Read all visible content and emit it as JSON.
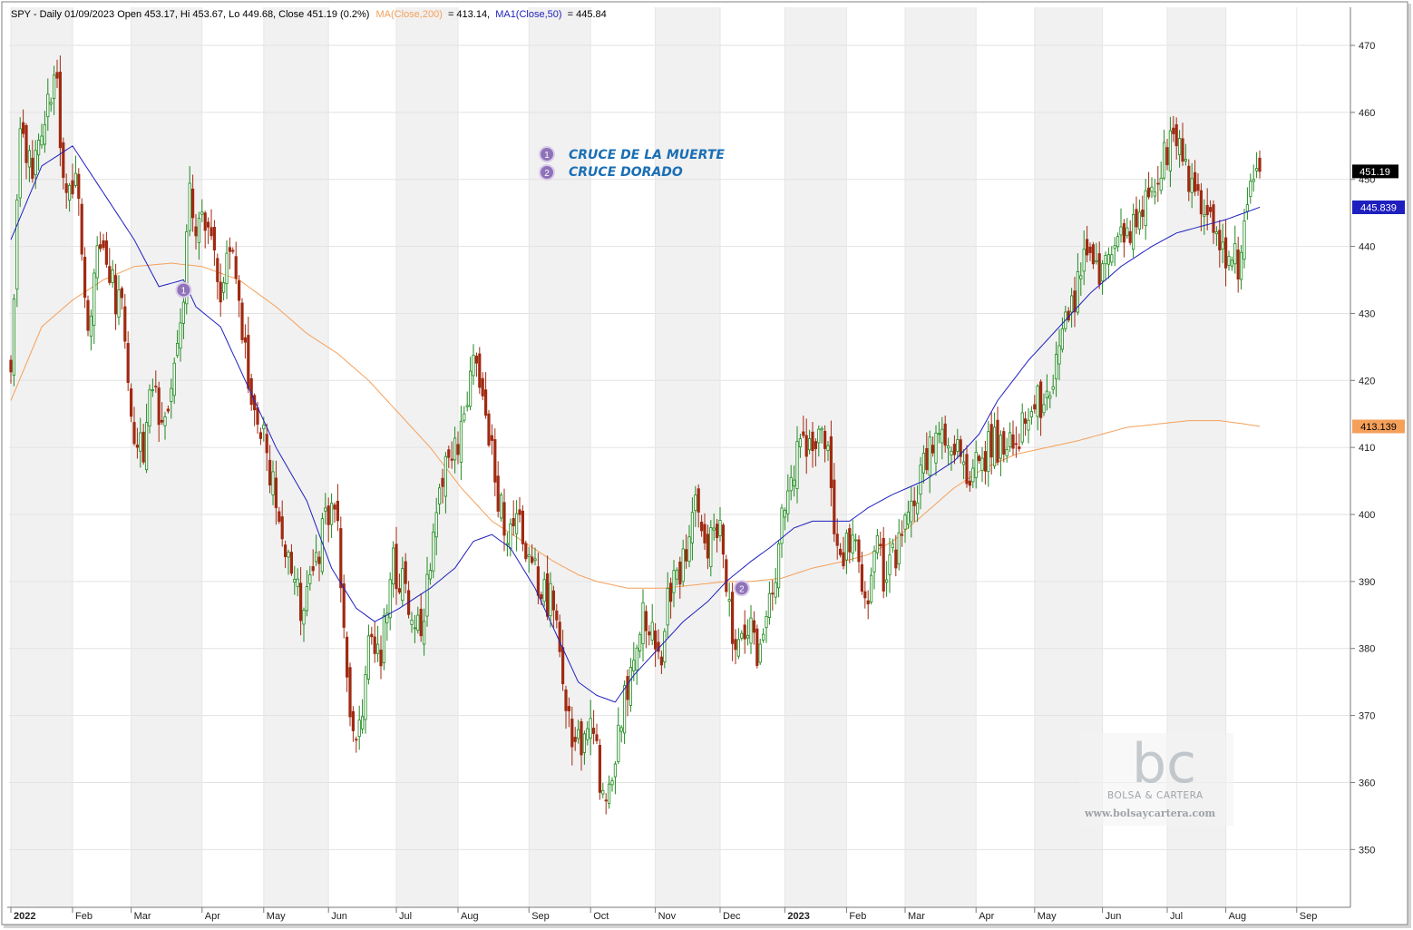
{
  "header": {
    "symbol_text": "SPY - Daily 01/09/2023 Open 453.17, Hi 453.67, Lo 449.68, Close 451.19 (0.2%)",
    "ma200_text": "MA(Close,200)",
    "ma200_value_text": "= 413.14,",
    "ma50_text": "MA1(Close,50)",
    "ma50_value_text": "= 445.84"
  },
  "annotations": [
    {
      "num": "1",
      "label": "CRUCE DE LA MUERTE"
    },
    {
      "num": "2",
      "label": "CRUCE DORADO"
    }
  ],
  "markers": [
    {
      "num": "1",
      "t": 56,
      "price": 433.5
    },
    {
      "num": "2",
      "t": 237,
      "price": 389.0
    }
  ],
  "price_tags": {
    "close": "451.19",
    "ma50": "445.839",
    "ma200": "413.139"
  },
  "watermark": {
    "logo": "bc",
    "brand": "BOLSA & CARTERA",
    "url": "www.bolsaycartera.com"
  },
  "colors": {
    "up": "#1e8a1e",
    "down": "#a02a12",
    "ma50": "#1f1fbf",
    "ma200": "#f5a05a",
    "annotation": "#1a6fb5",
    "marker": "#8f72b8",
    "close_tag_bg": "#000000",
    "ma50_tag_bg": "#1f1fbf",
    "ma200_tag_bg": "#f5a05a"
  },
  "chart_data": {
    "type": "candlestick",
    "instrument": "SPY",
    "interval": "Daily",
    "ylim": [
      343,
      473
    ],
    "yticks": [
      350,
      360,
      370,
      380,
      390,
      400,
      410,
      420,
      430,
      440,
      450,
      460,
      470
    ],
    "x_months": [
      {
        "label": "2022",
        "t": 0,
        "bold": true
      },
      {
        "label": "Feb",
        "t": 20
      },
      {
        "label": "Mar",
        "t": 39
      },
      {
        "label": "Apr",
        "t": 62
      },
      {
        "label": "May",
        "t": 82
      },
      {
        "label": "Jun",
        "t": 103
      },
      {
        "label": "Jul",
        "t": 125
      },
      {
        "label": "Aug",
        "t": 145
      },
      {
        "label": "Sep",
        "t": 168
      },
      {
        "label": "Oct",
        "t": 188
      },
      {
        "label": "Nov",
        "t": 209
      },
      {
        "label": "Dec",
        "t": 230
      },
      {
        "label": "2023",
        "t": 251,
        "bold": true
      },
      {
        "label": "Feb",
        "t": 271
      },
      {
        "label": "Mar",
        "t": 290
      },
      {
        "label": "Apr",
        "t": 313
      },
      {
        "label": "May",
        "t": 332
      },
      {
        "label": "Jun",
        "t": 354
      },
      {
        "label": "Jul",
        "t": 375
      },
      {
        "label": "Aug",
        "t": 394
      },
      {
        "label": "Sep",
        "t": 417
      }
    ],
    "close_anchors": [
      [
        0,
        422
      ],
      [
        3,
        456
      ],
      [
        6,
        452
      ],
      [
        10,
        455
      ],
      [
        14,
        467
      ],
      [
        18,
        448
      ],
      [
        22,
        448
      ],
      [
        25,
        426
      ],
      [
        28,
        440
      ],
      [
        32,
        435
      ],
      [
        36,
        430
      ],
      [
        40,
        412
      ],
      [
        43,
        408
      ],
      [
        45,
        420
      ],
      [
        48,
        416
      ],
      [
        52,
        419
      ],
      [
        56,
        434
      ],
      [
        58,
        447
      ],
      [
        60,
        444
      ],
      [
        64,
        444
      ],
      [
        68,
        434
      ],
      [
        72,
        440
      ],
      [
        78,
        416
      ],
      [
        82,
        412
      ],
      [
        86,
        402
      ],
      [
        90,
        392
      ],
      [
        94,
        387
      ],
      [
        98,
        392
      ],
      [
        102,
        398
      ],
      [
        106,
        400
      ],
      [
        109,
        375
      ],
      [
        112,
        364
      ],
      [
        116,
        381
      ],
      [
        120,
        378
      ],
      [
        123,
        393
      ],
      [
        128,
        389
      ],
      [
        132,
        382
      ],
      [
        136,
        391
      ],
      [
        140,
        405
      ],
      [
        146,
        413
      ],
      [
        150,
        423
      ],
      [
        155,
        411
      ],
      [
        160,
        398
      ],
      [
        164,
        400
      ],
      [
        168,
        394
      ],
      [
        172,
        389
      ],
      [
        176,
        386
      ],
      [
        180,
        370
      ],
      [
        184,
        365
      ],
      [
        188,
        372
      ],
      [
        191,
        360
      ],
      [
        194,
        357
      ],
      [
        198,
        369
      ],
      [
        202,
        381
      ],
      [
        206,
        385
      ],
      [
        210,
        377
      ],
      [
        214,
        389
      ],
      [
        218,
        392
      ],
      [
        222,
        401
      ],
      [
        226,
        395
      ],
      [
        230,
        400
      ],
      [
        234,
        380
      ],
      [
        238,
        384
      ],
      [
        242,
        380
      ],
      [
        244,
        381
      ],
      [
        248,
        390
      ],
      [
        250,
        398
      ],
      [
        253,
        406
      ],
      [
        256,
        412
      ],
      [
        260,
        410
      ],
      [
        264,
        412
      ],
      [
        267,
        400
      ],
      [
        270,
        394
      ],
      [
        273,
        396
      ],
      [
        278,
        386
      ],
      [
        280,
        396
      ],
      [
        284,
        390
      ],
      [
        288,
        396
      ],
      [
        292,
        401
      ],
      [
        296,
        408
      ],
      [
        300,
        411
      ],
      [
        305,
        412
      ],
      [
        310,
        405
      ],
      [
        314,
        408
      ],
      [
        318,
        410
      ],
      [
        322,
        411
      ],
      [
        326,
        411
      ],
      [
        330,
        417
      ],
      [
        334,
        416
      ],
      [
        338,
        420
      ],
      [
        342,
        428
      ],
      [
        346,
        434
      ],
      [
        348,
        439
      ],
      [
        350,
        438
      ],
      [
        354,
        436
      ],
      [
        358,
        440
      ],
      [
        362,
        441
      ],
      [
        366,
        446
      ],
      [
        368,
        447
      ],
      [
        372,
        452
      ],
      [
        376,
        456
      ],
      [
        378,
        455
      ],
      [
        380,
        454
      ],
      [
        384,
        448
      ],
      [
        388,
        445
      ],
      [
        392,
        441
      ],
      [
        396,
        438
      ],
      [
        398,
        437
      ],
      [
        401,
        446
      ],
      [
        404,
        450
      ],
      [
        405,
        451.19
      ]
    ],
    "ma50_anchors": [
      [
        0,
        441
      ],
      [
        10,
        452
      ],
      [
        20,
        455
      ],
      [
        30,
        448
      ],
      [
        40,
        441
      ],
      [
        48,
        434
      ],
      [
        56,
        435
      ],
      [
        60,
        431
      ],
      [
        68,
        428
      ],
      [
        76,
        420
      ],
      [
        86,
        410
      ],
      [
        96,
        402
      ],
      [
        104,
        392
      ],
      [
        112,
        386
      ],
      [
        118,
        384
      ],
      [
        126,
        386
      ],
      [
        136,
        389
      ],
      [
        144,
        392
      ],
      [
        150,
        396
      ],
      [
        156,
        397
      ],
      [
        162,
        395
      ],
      [
        170,
        389
      ],
      [
        178,
        381
      ],
      [
        184,
        375
      ],
      [
        190,
        373
      ],
      [
        196,
        372
      ],
      [
        202,
        376
      ],
      [
        210,
        380
      ],
      [
        218,
        384
      ],
      [
        226,
        387
      ],
      [
        232,
        390
      ],
      [
        240,
        393
      ],
      [
        246,
        395
      ],
      [
        254,
        398
      ],
      [
        260,
        399
      ],
      [
        266,
        399
      ],
      [
        272,
        399
      ],
      [
        278,
        401
      ],
      [
        286,
        403
      ],
      [
        296,
        405
      ],
      [
        306,
        408
      ],
      [
        314,
        412
      ],
      [
        320,
        417
      ],
      [
        330,
        423
      ],
      [
        340,
        428
      ],
      [
        350,
        433
      ],
      [
        360,
        437
      ],
      [
        370,
        440
      ],
      [
        378,
        442
      ],
      [
        386,
        443
      ],
      [
        394,
        444
      ],
      [
        400,
        445
      ],
      [
        405,
        445.84
      ]
    ],
    "ma200_anchors": [
      [
        0,
        417
      ],
      [
        10,
        428
      ],
      [
        20,
        432
      ],
      [
        30,
        435
      ],
      [
        40,
        437
      ],
      [
        52,
        437.5
      ],
      [
        62,
        437
      ],
      [
        74,
        435
      ],
      [
        86,
        431
      ],
      [
        96,
        427
      ],
      [
        106,
        424
      ],
      [
        116,
        420
      ],
      [
        126,
        415
      ],
      [
        136,
        410
      ],
      [
        146,
        404
      ],
      [
        156,
        399
      ],
      [
        166,
        396
      ],
      [
        176,
        393
      ],
      [
        184,
        391
      ],
      [
        190,
        390
      ],
      [
        200,
        389
      ],
      [
        212,
        389
      ],
      [
        222,
        389.5
      ],
      [
        232,
        390
      ],
      [
        240,
        390
      ],
      [
        250,
        390.5
      ],
      [
        260,
        392
      ],
      [
        270,
        393
      ],
      [
        278,
        394
      ],
      [
        286,
        396
      ],
      [
        296,
        400
      ],
      [
        306,
        404
      ],
      [
        316,
        407
      ],
      [
        326,
        409
      ],
      [
        336,
        410
      ],
      [
        346,
        411
      ],
      [
        354,
        412
      ],
      [
        362,
        413
      ],
      [
        372,
        413.5
      ],
      [
        382,
        414
      ],
      [
        392,
        414
      ],
      [
        400,
        413.5
      ],
      [
        405,
        413.14
      ]
    ]
  }
}
